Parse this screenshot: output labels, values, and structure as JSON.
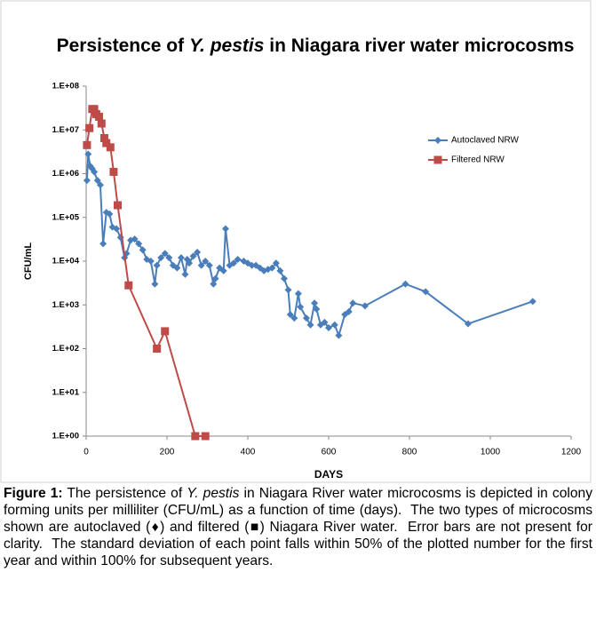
{
  "chart_data": {
    "type": "line",
    "title": [
      {
        "text": "Persistence of ",
        "style": "normal"
      },
      {
        "text": "Y. pestis",
        "style": "italic"
      },
      {
        "text": " in Niagara river water microcosms",
        "style": "normal"
      }
    ],
    "x_label": "DAYS",
    "y_label": "CFU/mL",
    "log_y": true,
    "legend": "upper right",
    "xlim": [
      0,
      1200
    ],
    "xticks": [
      0,
      200,
      400,
      600,
      800,
      1000,
      1200
    ],
    "ylim": [
      1,
      100000000
    ],
    "yticks": [
      {
        "value": 1,
        "label": "1.E+00"
      },
      {
        "value": 10,
        "label": "1.E+01"
      },
      {
        "value": 100,
        "label": "1.E+02"
      },
      {
        "value": 1000,
        "label": "1.E+03"
      },
      {
        "value": 10000,
        "label": "1.E+04"
      },
      {
        "value": 100000,
        "label": "1.E+05"
      },
      {
        "value": 1000000,
        "label": "1.E+06"
      },
      {
        "value": 10000000,
        "label": "1.E+07"
      },
      {
        "value": 100000000,
        "label": "1.E+08"
      }
    ],
    "series": [
      {
        "name": "Autoclaved NRW",
        "color": "#4a7ebb",
        "marker": "diamond",
        "x": [
          2,
          5,
          10,
          15,
          20,
          28,
          35,
          42,
          50,
          58,
          65,
          75,
          85,
          95,
          100,
          110,
          120,
          130,
          140,
          150,
          160,
          170,
          175,
          185,
          195,
          205,
          215,
          225,
          235,
          245,
          250,
          255,
          265,
          275,
          285,
          295,
          305,
          315,
          320,
          330,
          340,
          345,
          355,
          365,
          375,
          390,
          400,
          410,
          420,
          430,
          440,
          450,
          460,
          470,
          480,
          490,
          500,
          505,
          515,
          525,
          530,
          545,
          555,
          565,
          570,
          580,
          590,
          600,
          615,
          625,
          640,
          650,
          660,
          690,
          790,
          840,
          945,
          1105
        ],
        "values": [
          700000,
          2800000,
          1500000,
          1300000,
          1100000,
          700000,
          550000,
          25000,
          130000,
          120000,
          60000,
          55000,
          35000,
          12000,
          15000,
          30000,
          32000,
          25000,
          18000,
          11000,
          10000,
          3000,
          8000,
          12000,
          15000,
          12000,
          8000,
          7000,
          12000,
          5000,
          11000,
          9000,
          13000,
          16000,
          8000,
          10000,
          8000,
          3000,
          4000,
          7000,
          6000,
          55000,
          8000,
          9000,
          11000,
          10000,
          9000,
          8000,
          8000,
          7000,
          6000,
          6500,
          7000,
          9000,
          6000,
          4000,
          2200,
          600,
          500,
          1800,
          900,
          500,
          350,
          1100,
          800,
          350,
          400,
          300,
          350,
          200,
          600,
          700,
          1100,
          950,
          3000,
          2000,
          370,
          1200
        ]
      },
      {
        "name": "Filtered NRW",
        "color": "#be4b48",
        "marker": "square",
        "x": [
          2,
          8,
          15,
          20,
          25,
          32,
          38,
          45,
          50,
          60,
          68,
          78,
          105,
          175,
          195,
          270,
          295
        ],
        "values": [
          4500000,
          11000000,
          30000000,
          30000000,
          23000000,
          20000000,
          14000000,
          6500000,
          5000000,
          4000000,
          1100000,
          190000,
          2800,
          100,
          250,
          1,
          1
        ]
      }
    ],
    "caption": [
      {
        "text": "Figure 1:",
        "style": "bold"
      },
      {
        "text": " The persistence of ",
        "style": "normal"
      },
      {
        "text": "Y. pestis",
        "style": "italic"
      },
      {
        "text": " in Niagara River water microcosms is depicted in colony forming units per milliliter (CFU/mL) as a function of time (days).  The two types of microcosms shown are autoclaved (♦) and filtered (■) Niagara River water.  Error bars are not present for clarity.  The standard deviation of each point falls within 50% of the plotted number for the first year and within 100% for subsequent years.",
        "style": "normal"
      }
    ]
  }
}
